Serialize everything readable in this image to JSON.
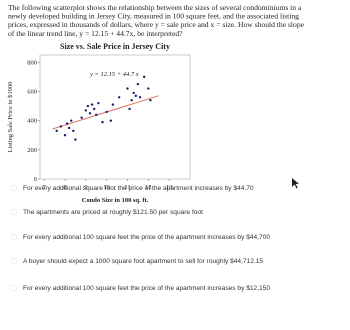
{
  "question": {
    "lines": [
      "The following scatterplot shows the relationship between the sizes of several condominiums in a",
      "newly developed building in Jersey City, measured in 100 square feet, and the associated listing",
      "prices, expressed in thousands of dollars, where y = sale price and x = size. How should the slope",
      "of the linear trend line, y = 12.15 + 44.7x, be interpreted?"
    ]
  },
  "chart": {
    "type": "scatter",
    "title": "Size vs. Sale Price in Jersey City",
    "x_label": "Condo Size in 100 sq. ft.",
    "y_label": "Listing Sale Price in $1000",
    "annotation": "y = 12.15 + 44.7 x",
    "xlim": [
      6.8,
      14
    ],
    "ylim": [
      0,
      850
    ],
    "xticks": [
      7,
      8,
      9,
      10,
      11,
      12,
      13
    ],
    "yticks": [
      0,
      200,
      400,
      600,
      800
    ],
    "color": "#1a1a6e",
    "trend_color": "#e07060",
    "x": [
      7.6,
      7.8,
      8.0,
      8.1,
      8.2,
      8.3,
      8.4,
      8.5,
      8.8,
      9.0,
      9.1,
      9.2,
      9.3,
      9.4,
      9.5,
      9.6,
      9.8,
      10.0,
      10.2,
      10.3,
      10.6,
      11.0,
      11.1,
      11.2,
      11.3,
      11.4,
      11.5,
      11.6,
      11.8,
      12.0,
      12.1
    ],
    "values": [
      330,
      360,
      300,
      380,
      350,
      400,
      330,
      270,
      420,
      470,
      500,
      450,
      510,
      480,
      440,
      520,
      390,
      460,
      400,
      510,
      560,
      620,
      480,
      540,
      590,
      570,
      650,
      560,
      700,
      620,
      540
    ],
    "trend_line": {
      "x": [
        7.4,
        12.5
      ],
      "y": [
        343,
        571
      ]
    }
  },
  "options": [
    "For every additional square foot the price of the apartment increases by $44.70",
    "The apartments are priced at roughly $121.50 per square foot",
    "For every additional 100 square feet the price of the apartment increases by $44,700",
    "A buyer should expect a 1000 square foot apartment to sell for roughly $44,712.15",
    "For every additional 100 square feet the price of the apartment increases by $12,150"
  ]
}
